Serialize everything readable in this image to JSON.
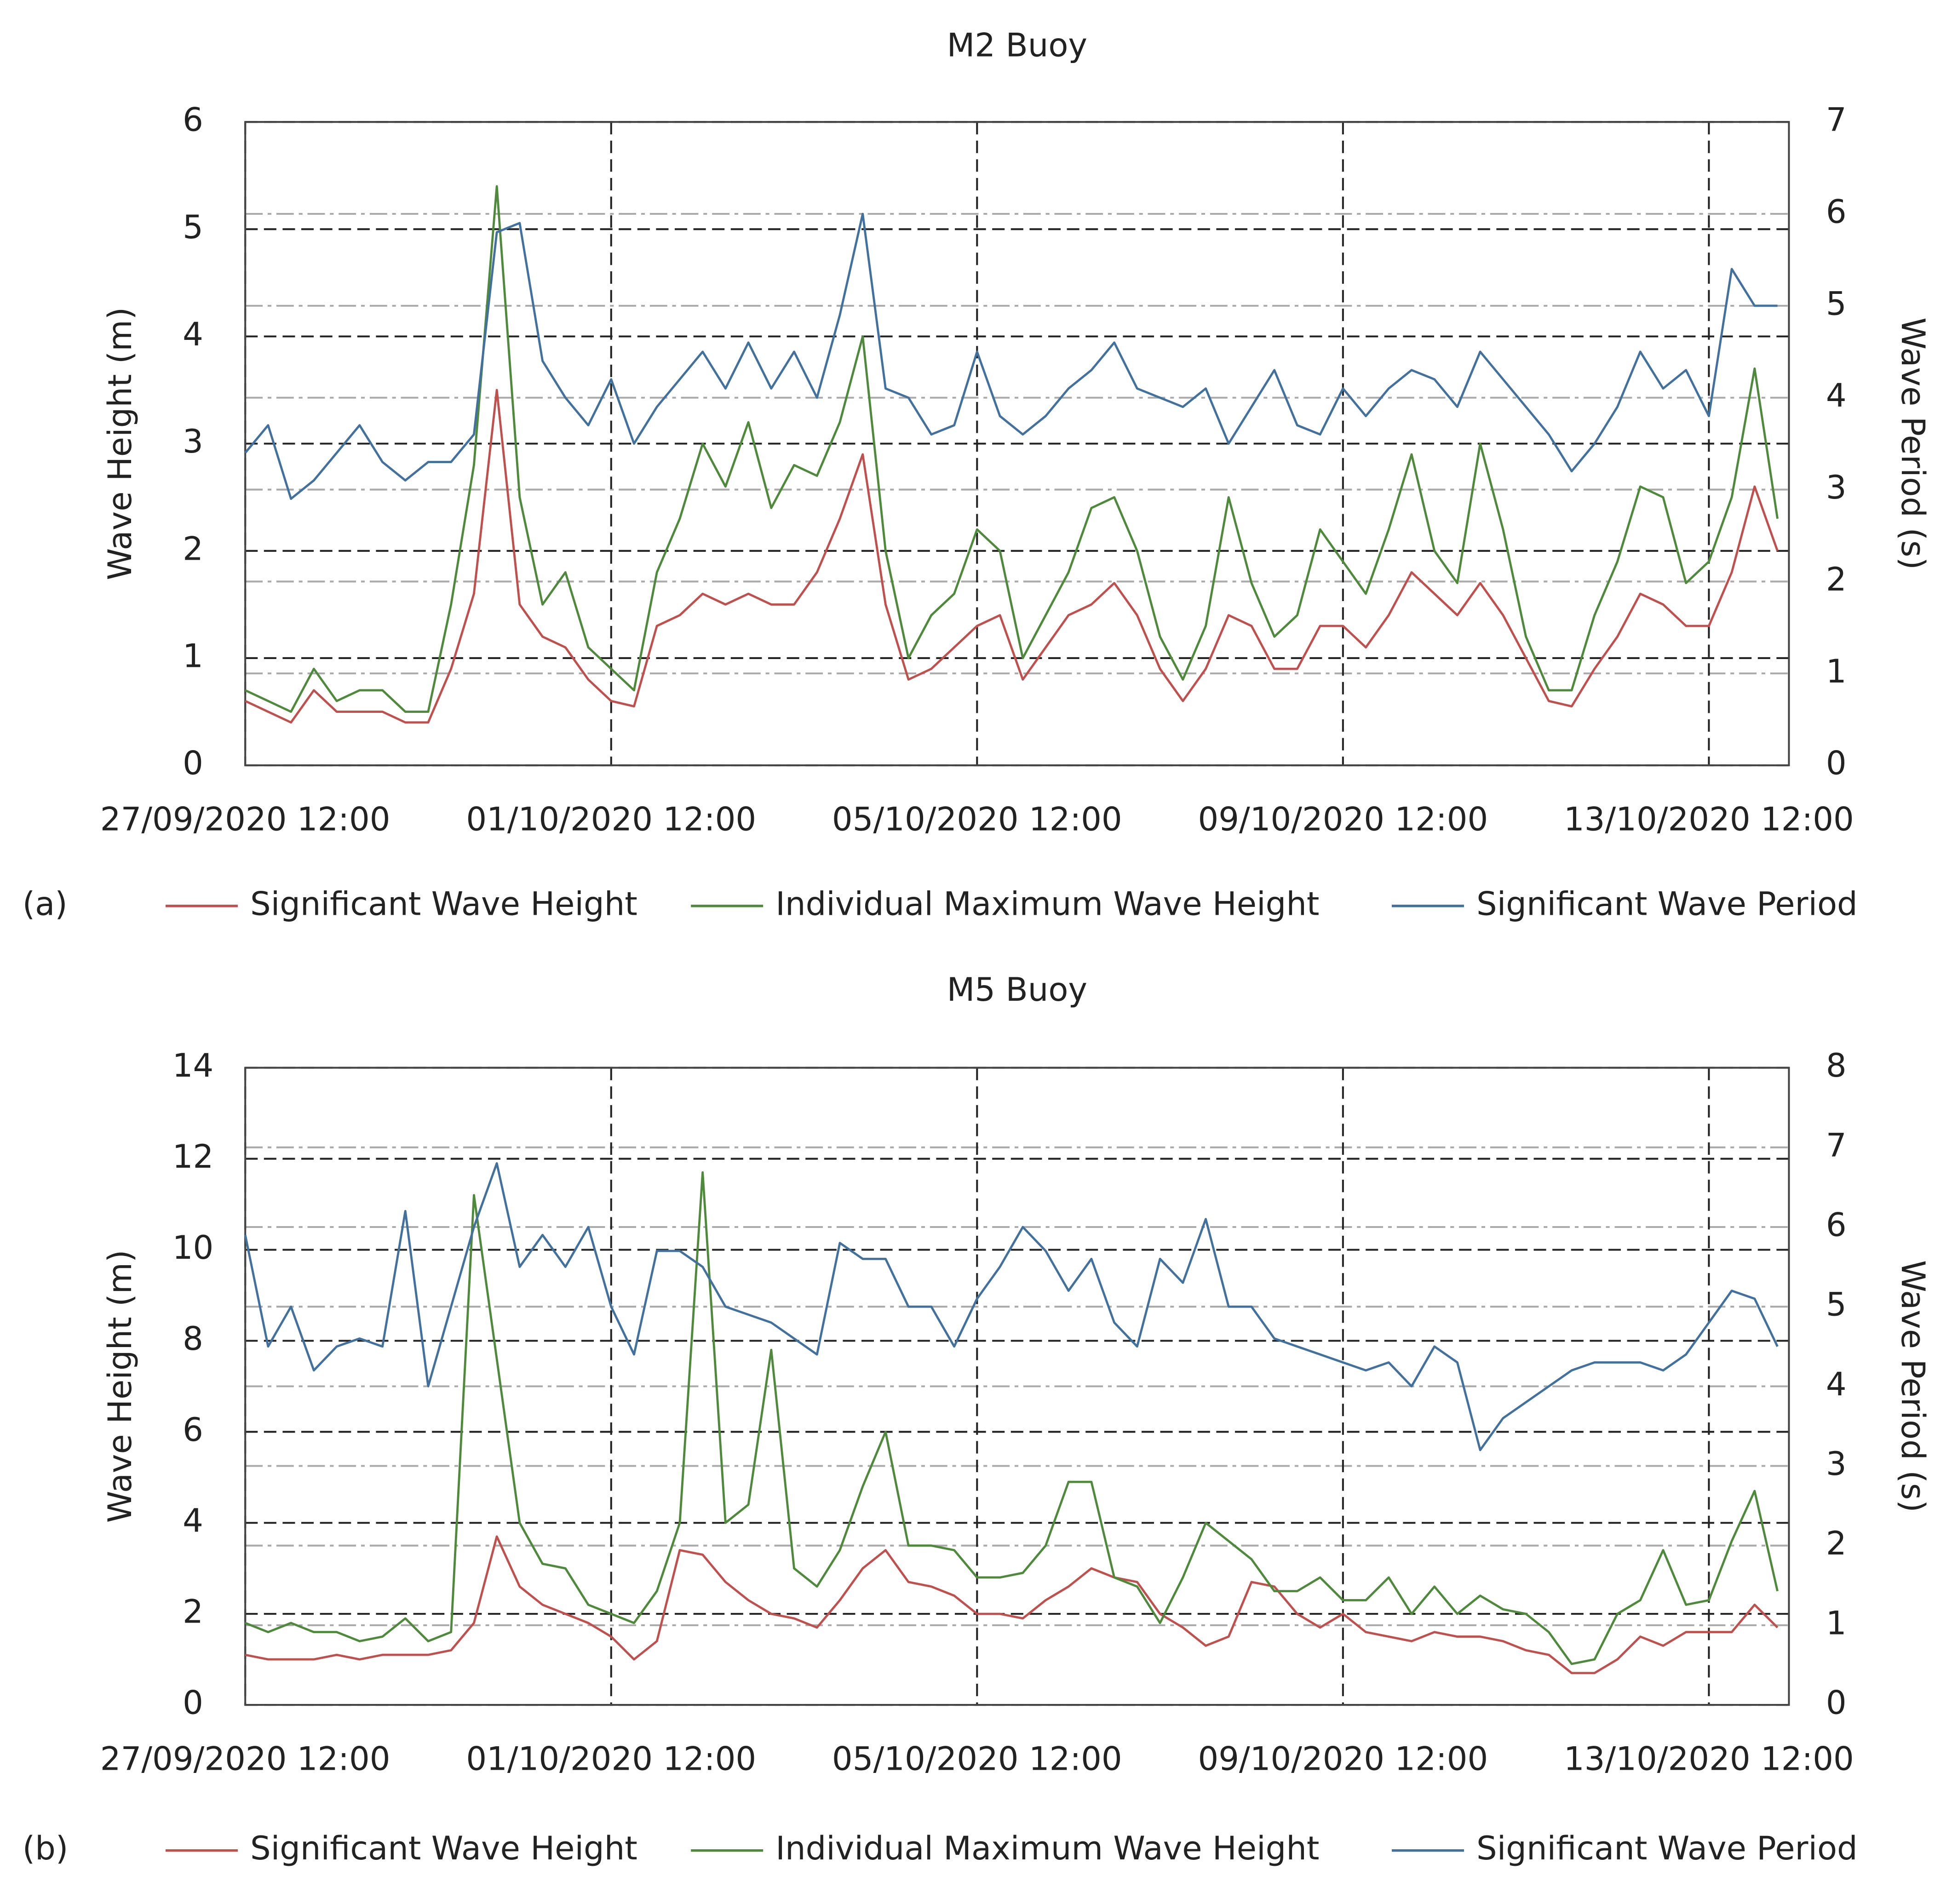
{
  "chart_data": [
    {
      "type": "line",
      "title": "M2 Buoy",
      "panel_label": "(a)",
      "ylabel": "Wave Height (m)",
      "y2label": "Wave Period (s)",
      "x": [
        "27/09/2020 12:00",
        "27/09/2020 18:00",
        "28/09/2020 00:00",
        "28/09/2020 06:00",
        "28/09/2020 12:00",
        "28/09/2020 18:00",
        "29/09/2020 00:00",
        "29/09/2020 06:00",
        "29/09/2020 12:00",
        "29/09/2020 18:00",
        "30/09/2020 00:00",
        "30/09/2020 06:00",
        "30/09/2020 12:00",
        "30/09/2020 18:00",
        "01/10/2020 00:00",
        "01/10/2020 06:00",
        "01/10/2020 12:00",
        "01/10/2020 18:00",
        "02/10/2020 00:00",
        "02/10/2020 06:00",
        "02/10/2020 12:00",
        "02/10/2020 18:00",
        "03/10/2020 00:00",
        "03/10/2020 06:00",
        "03/10/2020 12:00",
        "03/10/2020 18:00",
        "04/10/2020 00:00",
        "04/10/2020 06:00",
        "04/10/2020 12:00",
        "04/10/2020 18:00",
        "05/10/2020 00:00",
        "05/10/2020 06:00",
        "05/10/2020 12:00",
        "05/10/2020 18:00",
        "06/10/2020 00:00",
        "06/10/2020 06:00",
        "06/10/2020 12:00",
        "06/10/2020 18:00",
        "07/10/2020 00:00",
        "07/10/2020 06:00",
        "07/10/2020 12:00",
        "07/10/2020 18:00",
        "08/10/2020 00:00",
        "08/10/2020 06:00",
        "08/10/2020 12:00",
        "08/10/2020 18:00",
        "09/10/2020 00:00",
        "09/10/2020 06:00",
        "09/10/2020 12:00",
        "09/10/2020 18:00",
        "10/10/2020 00:00",
        "10/10/2020 06:00",
        "10/10/2020 12:00",
        "10/10/2020 18:00",
        "11/10/2020 00:00",
        "11/10/2020 06:00",
        "11/10/2020 12:00",
        "11/10/2020 18:00",
        "12/10/2020 00:00",
        "12/10/2020 06:00",
        "12/10/2020 12:00",
        "12/10/2020 18:00",
        "13/10/2020 00:00",
        "13/10/2020 06:00",
        "13/10/2020 12:00",
        "13/10/2020 18:00",
        "14/10/2020 00:00",
        "14/10/2020 06:00"
      ],
      "xlim": [
        "27/09/2020 12:00",
        "14/10/2020 09:00"
      ],
      "xticks": [
        "27/09/2020 12:00",
        "01/10/2020 12:00",
        "05/10/2020 12:00",
        "09/10/2020 12:00",
        "13/10/2020 12:00"
      ],
      "ylim": [
        0,
        6
      ],
      "yticks": [
        0,
        1,
        2,
        3,
        4,
        5,
        6
      ],
      "y2lim": [
        0,
        7
      ],
      "y2ticks": [
        0,
        1,
        2,
        3,
        4,
        5,
        6,
        7
      ],
      "series": [
        {
          "name": "Significant Wave Height",
          "color": "#c0504d",
          "values": [
            0.6,
            0.5,
            0.4,
            0.7,
            0.5,
            0.5,
            0.5,
            0.4,
            0.4,
            0.9,
            1.6,
            3.5,
            1.5,
            1.2,
            1.1,
            0.8,
            0.6,
            0.55,
            1.3,
            1.4,
            1.6,
            1.5,
            1.6,
            1.5,
            1.5,
            1.8,
            2.3,
            2.9,
            1.5,
            0.8,
            0.9,
            1.1,
            1.3,
            1.4,
            0.8,
            1.1,
            1.4,
            1.5,
            1.7,
            1.4,
            0.9,
            0.6,
            0.9,
            1.4,
            1.3,
            0.9,
            0.9,
            1.3,
            1.3,
            1.1,
            1.4,
            1.8,
            1.6,
            1.4,
            1.7,
            1.4,
            1.0,
            0.6,
            0.55,
            0.9,
            1.2,
            1.6,
            1.5,
            1.3,
            1.3,
            1.8,
            2.6,
            2.0
          ]
        },
        {
          "name": "Individual Maximum Wave Height",
          "color": "#4f8a3c",
          "values": [
            0.7,
            0.6,
            0.5,
            0.9,
            0.6,
            0.7,
            0.7,
            0.5,
            0.5,
            1.5,
            2.8,
            5.4,
            2.5,
            1.5,
            1.8,
            1.1,
            0.9,
            0.7,
            1.8,
            2.3,
            3.0,
            2.6,
            3.2,
            2.4,
            2.8,
            2.7,
            3.2,
            4.0,
            2.0,
            1.0,
            1.4,
            1.6,
            2.2,
            2.0,
            1.0,
            1.4,
            1.8,
            2.4,
            2.5,
            2.0,
            1.2,
            0.8,
            1.3,
            2.5,
            1.7,
            1.2,
            1.4,
            2.2,
            1.9,
            1.6,
            2.2,
            2.9,
            2.0,
            1.7,
            3.0,
            2.2,
            1.2,
            0.7,
            0.7,
            1.4,
            1.9,
            2.6,
            2.5,
            1.7,
            1.9,
            2.5,
            3.7,
            2.3
          ]
        },
        {
          "name": "Significant Wave Period",
          "color": "#41719c",
          "axis": "y2",
          "values": [
            3.4,
            3.7,
            2.9,
            3.1,
            3.4,
            3.7,
            3.3,
            3.1,
            3.3,
            3.3,
            3.6,
            5.8,
            5.9,
            4.4,
            4.0,
            3.7,
            4.2,
            3.5,
            3.9,
            4.2,
            4.5,
            4.1,
            4.6,
            4.1,
            4.5,
            4.0,
            4.9,
            6.0,
            4.1,
            4.0,
            3.6,
            3.7,
            4.5,
            3.8,
            3.6,
            3.8,
            4.1,
            4.3,
            4.6,
            4.1,
            4.0,
            3.9,
            4.1,
            3.5,
            3.9,
            4.3,
            3.7,
            3.6,
            4.1,
            3.8,
            4.1,
            4.3,
            4.2,
            3.9,
            4.5,
            4.2,
            3.9,
            3.6,
            3.2,
            3.5,
            3.9,
            4.5,
            4.1,
            4.3,
            3.8,
            5.4,
            5.0,
            5.0
          ]
        }
      ]
    },
    {
      "type": "line",
      "title": "M5 Buoy",
      "panel_label": "(b)",
      "ylabel": "Wave Height (m)",
      "y2label": "Wave Period (s)",
      "x": [
        "27/09/2020 12:00",
        "27/09/2020 18:00",
        "28/09/2020 00:00",
        "28/09/2020 06:00",
        "28/09/2020 12:00",
        "28/09/2020 18:00",
        "29/09/2020 00:00",
        "29/09/2020 06:00",
        "29/09/2020 12:00",
        "29/09/2020 18:00",
        "30/09/2020 00:00",
        "30/09/2020 06:00",
        "30/09/2020 12:00",
        "30/09/2020 18:00",
        "01/10/2020 00:00",
        "01/10/2020 06:00",
        "01/10/2020 12:00",
        "01/10/2020 18:00",
        "02/10/2020 00:00",
        "02/10/2020 06:00",
        "02/10/2020 12:00",
        "02/10/2020 18:00",
        "03/10/2020 00:00",
        "03/10/2020 06:00",
        "03/10/2020 12:00",
        "03/10/2020 18:00",
        "04/10/2020 00:00",
        "04/10/2020 06:00",
        "04/10/2020 12:00",
        "04/10/2020 18:00",
        "05/10/2020 00:00",
        "05/10/2020 06:00",
        "05/10/2020 12:00",
        "05/10/2020 18:00",
        "06/10/2020 00:00",
        "06/10/2020 06:00",
        "06/10/2020 12:00",
        "06/10/2020 18:00",
        "07/10/2020 00:00",
        "07/10/2020 06:00",
        "07/10/2020 12:00",
        "07/10/2020 18:00",
        "08/10/2020 00:00",
        "08/10/2020 06:00",
        "08/10/2020 12:00",
        "08/10/2020 18:00",
        "09/10/2020 00:00",
        "09/10/2020 06:00",
        "09/10/2020 12:00",
        "09/10/2020 18:00",
        "10/10/2020 00:00",
        "10/10/2020 06:00",
        "10/10/2020 12:00",
        "10/10/2020 18:00",
        "11/10/2020 00:00",
        "11/10/2020 06:00",
        "11/10/2020 12:00",
        "11/10/2020 18:00",
        "12/10/2020 00:00",
        "12/10/2020 06:00",
        "12/10/2020 12:00",
        "12/10/2020 18:00",
        "13/10/2020 00:00",
        "13/10/2020 06:00",
        "13/10/2020 12:00",
        "13/10/2020 18:00",
        "14/10/2020 00:00",
        "14/10/2020 06:00"
      ],
      "xlim": [
        "27/09/2020 12:00",
        "14/10/2020 09:00"
      ],
      "xticks": [
        "27/09/2020 12:00",
        "01/10/2020 12:00",
        "05/10/2020 12:00",
        "09/10/2020 12:00",
        "13/10/2020 12:00"
      ],
      "ylim": [
        0,
        14
      ],
      "yticks": [
        0,
        2,
        4,
        6,
        8,
        10,
        12,
        14
      ],
      "y2lim": [
        0,
        8
      ],
      "y2ticks": [
        0,
        1,
        2,
        3,
        4,
        5,
        6,
        7,
        8
      ],
      "series": [
        {
          "name": "Significant Wave Height",
          "color": "#c0504d",
          "values": [
            1.1,
            1.0,
            1.0,
            1.0,
            1.1,
            1.0,
            1.1,
            1.1,
            1.1,
            1.2,
            1.8,
            3.7,
            2.6,
            2.2,
            2.0,
            1.8,
            1.5,
            1.0,
            1.4,
            3.4,
            3.3,
            2.7,
            2.3,
            2.0,
            1.9,
            1.7,
            2.3,
            3.0,
            3.4,
            2.7,
            2.6,
            2.4,
            2.0,
            2.0,
            1.9,
            2.3,
            2.6,
            3.0,
            2.8,
            2.7,
            2.0,
            1.7,
            1.3,
            1.5,
            2.7,
            2.6,
            2.0,
            1.7,
            2.0,
            1.6,
            1.5,
            1.4,
            1.6,
            1.5,
            1.5,
            1.4,
            1.2,
            1.1,
            0.7,
            0.7,
            1.0,
            1.5,
            1.3,
            1.6,
            1.6,
            1.6,
            2.2,
            1.7
          ]
        },
        {
          "name": "Individual Maximum Wave Height",
          "color": "#4f8a3c",
          "values": [
            1.8,
            1.6,
            1.8,
            1.6,
            1.6,
            1.4,
            1.5,
            1.9,
            1.4,
            1.6,
            11.2,
            7.6,
            4.0,
            3.1,
            3.0,
            2.2,
            2.0,
            1.8,
            2.5,
            4.0,
            11.7,
            4.0,
            4.4,
            7.8,
            3.0,
            2.6,
            3.4,
            4.8,
            6.0,
            3.5,
            3.5,
            3.4,
            2.8,
            2.8,
            2.9,
            3.5,
            4.9,
            4.9,
            2.8,
            2.6,
            1.8,
            2.8,
            4.0,
            3.6,
            3.2,
            2.5,
            2.5,
            2.8,
            2.3,
            2.3,
            2.8,
            2.0,
            2.6,
            2.0,
            2.4,
            2.1,
            2.0,
            1.6,
            0.9,
            1.0,
            2.0,
            2.3,
            3.4,
            2.2,
            2.3,
            3.6,
            4.7,
            2.5
          ]
        },
        {
          "name": "Significant Wave Period",
          "color": "#41719c",
          "axis": "y2",
          "values": [
            5.9,
            4.5,
            5.0,
            4.2,
            4.5,
            4.6,
            4.5,
            6.2,
            4.0,
            5.0,
            6.0,
            6.8,
            5.5,
            5.9,
            5.5,
            6.0,
            5.0,
            4.4,
            5.7,
            5.7,
            5.5,
            5.0,
            4.9,
            4.8,
            4.6,
            4.4,
            5.8,
            5.6,
            5.6,
            5.0,
            5.0,
            4.5,
            5.1,
            5.5,
            6.0,
            5.7,
            5.2,
            5.6,
            4.8,
            4.5,
            5.6,
            5.3,
            6.1,
            5.0,
            5.0,
            4.6,
            4.5,
            4.4,
            4.3,
            4.2,
            4.3,
            4.0,
            4.5,
            4.3,
            3.2,
            3.6,
            3.8,
            4.0,
            4.2,
            4.3,
            4.3,
            4.3,
            4.2,
            4.4,
            4.8,
            5.2,
            5.1,
            4.5
          ]
        }
      ]
    }
  ]
}
